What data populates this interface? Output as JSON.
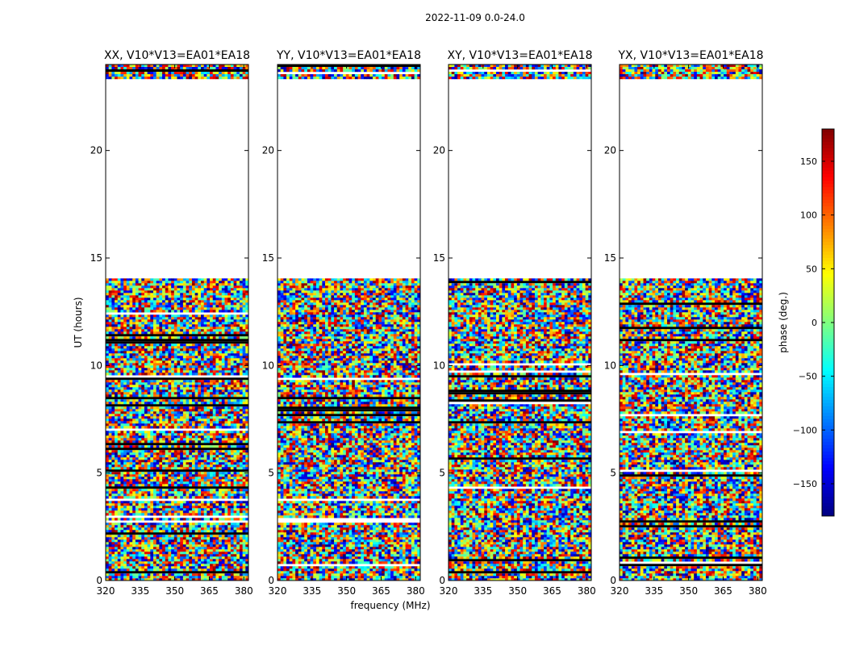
{
  "chart_data": {
    "type": "heatmap",
    "title": "2022-11-09 0.0-24.0",
    "xlabel": "frequency (MHz)",
    "ylabel": "UT (hours)",
    "xlim": [
      320,
      382
    ],
    "ylim": [
      0,
      24
    ],
    "xticks": [
      320,
      335,
      350,
      365,
      380
    ],
    "yticks": [
      0,
      5,
      10,
      15,
      20
    ],
    "panels": [
      {
        "title": "XX, V10*V13=EA01*EA18",
        "pol": "XX"
      },
      {
        "title": "YY, V10*V13=EA01*EA18",
        "pol": "YY"
      },
      {
        "title": "XY, V10*V13=EA01*EA18",
        "pol": "XY"
      },
      {
        "title": "YX, V10*V13=EA01*EA18",
        "pol": "YX"
      }
    ],
    "data_blocks_hours": [
      [
        0,
        14.05
      ],
      [
        23.4,
        24
      ]
    ],
    "colorbar": {
      "label": "phase (deg.)",
      "range": [
        -180,
        180
      ],
      "ticks": [
        -150,
        -100,
        -50,
        0,
        50,
        100,
        150
      ],
      "colormap": "jet"
    }
  }
}
